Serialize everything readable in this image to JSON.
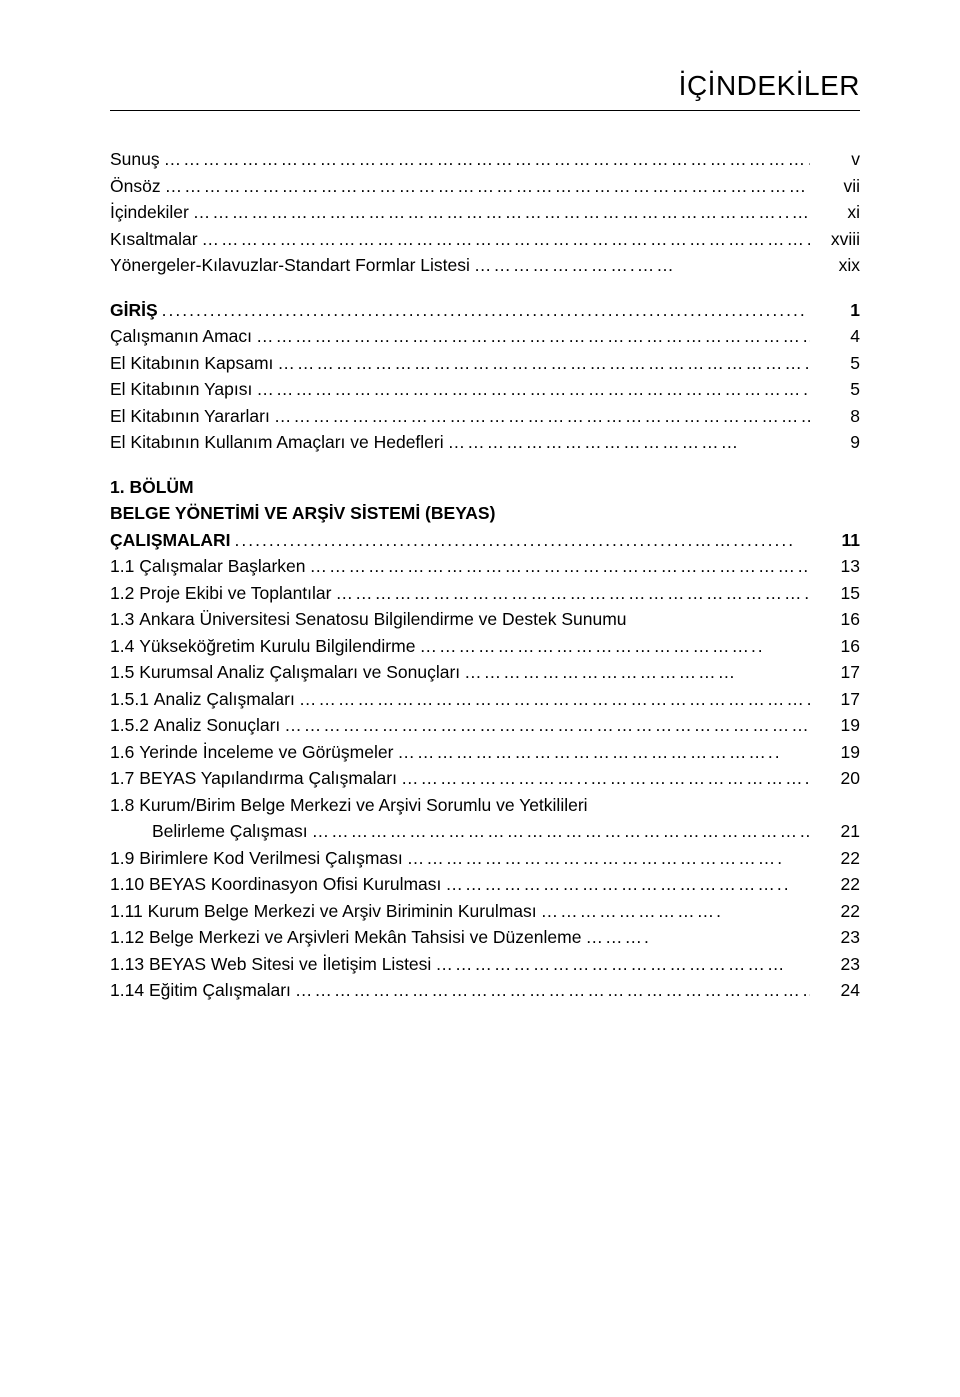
{
  "title": "İÇİNDEKİLER",
  "typography": {
    "title_fontsize_pt": 21,
    "body_fontsize_pt": 13,
    "font_family": "Verdana",
    "text_color": "#000000",
    "background_color": "#ffffff",
    "rule_color": "#000000"
  },
  "entries": [
    {
      "num": "",
      "label": "Sunuş",
      "leader": "…………………………………………………………………………………………………………..",
      "page": "v"
    },
    {
      "num": "",
      "label": "Önsöz",
      "leader": "………………………………………………………………………………………………........................",
      "page": "vii"
    },
    {
      "num": "",
      "label": "İçindekiler",
      "leader": "………………………………………………………………………………..……….......................",
      "page": "xi"
    },
    {
      "num": "",
      "label": "Kısaltmalar",
      "leader": "……………………………………………………………………………………………………",
      "page": "xviii"
    },
    {
      "num": "",
      "label": "Yönergeler-Kılavuzlar-Standart Formlar Listesi",
      "leader": "…………………….……",
      "page": "xix"
    },
    {
      "gap": true
    },
    {
      "num": "",
      "label": "GİRİŞ",
      "leader": "..............................................................................................",
      "page": "1",
      "bold": true
    },
    {
      "num": "",
      "label": "Çalışmanın Amacı",
      "leader": "…………………………………………………………………………….…..",
      "page": "4"
    },
    {
      "num": "",
      "label": "El Kitabının Kapsamı",
      "leader": "……………………………………………………………………………..",
      "page": "5"
    },
    {
      "num": "",
      "label": "El Kitabının Yapısı",
      "leader": "…………………………………………………………………………………….",
      "page": "5"
    },
    {
      "num": "",
      "label": "El Kitabının Yararları",
      "leader": "……………………………………………………………………………..",
      "page": "8"
    },
    {
      "num": "",
      "label": "El Kitabının Kullanım Amaçları ve Hedefleri",
      "leader": "………………………………………",
      "page": "9"
    },
    {
      "gap": true
    },
    {
      "num": "",
      "label": "1. BÖLÜM",
      "leader": "",
      "page": "",
      "bold": true,
      "no_leader": true
    },
    {
      "num": "",
      "label": "BELGE YÖNETİMİ VE ARŞİV SİSTEMİ (BEYAS)",
      "leader": "",
      "page": "",
      "bold": true,
      "no_leader": true
    },
    {
      "num": "",
      "label": "ÇALIŞMALARI",
      "leader": "...................................................................…….........",
      "page": "11",
      "bold": true
    },
    {
      "num": "1.1 ",
      "label": "Çalışmalar Başlarken",
      "leader": "………………………………………………………………………….",
      "page": "13"
    },
    {
      "num": "1.2 ",
      "label": "Proje Ekibi ve Toplantılar",
      "leader": "…………………………………………………………………..",
      "page": "15"
    },
    {
      "num": "1.3 ",
      "label": "Ankara Üniversitesi Senatosu Bilgilendirme ve Destek Sunumu",
      "leader": "",
      "page": "16",
      "no_leader": true
    },
    {
      "num": "1.4 ",
      "label": "Yükseköğretim Kurulu Bilgilendirme",
      "leader": "……………………………………………..",
      "page": "16"
    },
    {
      "num": "1.5 ",
      "label": "Kurumsal Analiz Çalışmaları ve Sonuçları",
      "leader": "……………………………………",
      "page": "17"
    },
    {
      "num": "1.5.1 ",
      "label": "Analiz Çalışmaları",
      "leader": "…………………………………………………………………………",
      "page": "17"
    },
    {
      "num": "1.5.2 ",
      "label": "Analiz Sonuçları",
      "leader": "……………………………………………………………………………",
      "page": "19"
    },
    {
      "num": "1.6 ",
      "label": "Yerinde İnceleme ve Görüşmeler",
      "leader": "…………………………………………………..",
      "page": "19"
    },
    {
      "num": "1.7 ",
      "label": "BEYAS Yapılandırma Çalışmaları",
      "leader": "………………………..…………………………….",
      "page": "20"
    },
    {
      "num": "1.8 ",
      "label": "Kurum/Birim Belge Merkezi ve Arşivi Sorumlu ve Yetkilileri",
      "leader": "",
      "page": "",
      "no_leader": true
    },
    {
      "num": "",
      "label": "Belirleme Çalışması",
      "leader": "……………………………………………………………………………..",
      "page": "21",
      "indent": true
    },
    {
      "num": "1.9 ",
      "label": "Birimlere Kod Verilmesi Çalışması",
      "leader": "………………………………………………….",
      "page": "22"
    },
    {
      "num": "1.10 ",
      "label": "BEYAS Koordinasyon Ofisi Kurulması",
      "leader": "……………………………………………..",
      "page": "22"
    },
    {
      "num": "1.11 ",
      "label": "Kurum Belge Merkezi ve Arşiv Biriminin Kurulması",
      "leader": "……………………….",
      "page": "22"
    },
    {
      "num": "1.12 ",
      "label": "Belge Merkezi ve Arşivleri Mekân Tahsisi ve Düzenleme",
      "leader": "……….",
      "page": "23"
    },
    {
      "num": "1.13 ",
      "label": "BEYAS Web Sitesi ve İletişim Listesi",
      "leader": "………………………………………………",
      "page": "23"
    },
    {
      "num": "1.14 ",
      "label": "Eğitim Çalışmaları",
      "leader": "…………………………………………………………………………….",
      "page": "24"
    }
  ]
}
